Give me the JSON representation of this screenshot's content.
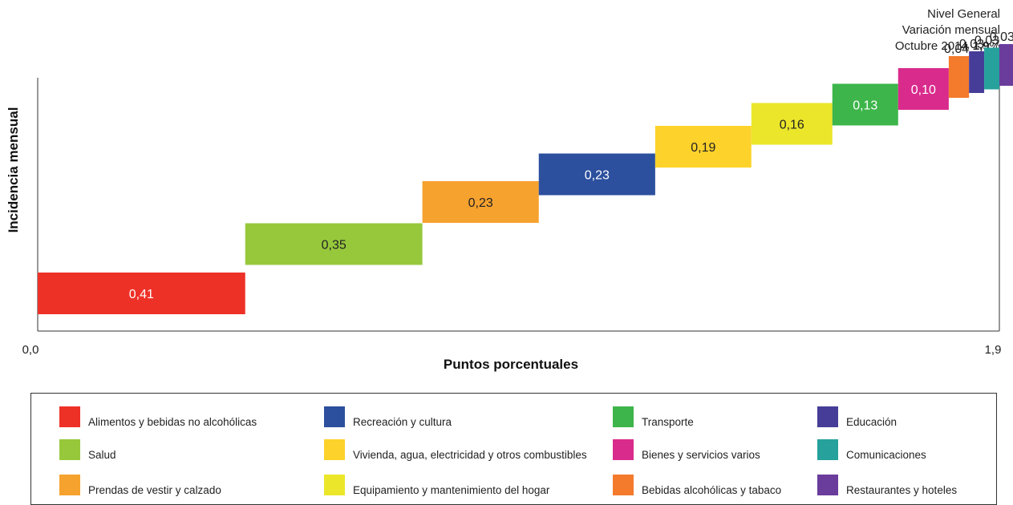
{
  "corner": {
    "line1": "Nivel General",
    "line2": "Variación mensual",
    "line3": "Octubre 2014",
    "value": "1,9",
    "unit": "%"
  },
  "chart_data": {
    "type": "bar",
    "subtype": "waterfall",
    "title": "",
    "xlabel": "Puntos porcentuales",
    "ylabel": "Incidencia mensual",
    "xlim": [
      0,
      1.9
    ],
    "x_tick_labels": [
      "0,0",
      "1,9"
    ],
    "total": 1.9,
    "total_label": "1,9%",
    "categories": [
      "Alimentos y bebidas no alcohólicas",
      "Salud",
      "Prendas de vestir y calzado",
      "Recreación y cultura",
      "Vivienda, agua, electricidad y otros combustibles",
      "Equipamiento y mantenimiento del hogar",
      "Transporte",
      "Bienes y servicios varios",
      "Bebidas alcohólicas y tabaco",
      "Educación",
      "Comunicaciones",
      "Restaurantes y hoteles"
    ],
    "values": [
      0.41,
      0.35,
      0.23,
      0.23,
      0.19,
      0.16,
      0.13,
      0.1,
      0.04,
      0.03,
      0.03,
      0.03
    ],
    "value_labels": [
      "0,41",
      "0,35",
      "0,23",
      "0,23",
      "0,19",
      "0,16",
      "0,13",
      "0,10",
      "0,04",
      "0,03",
      "0,03",
      "0,03"
    ],
    "colors": [
      "#ee3127",
      "#97c83c",
      "#f6a22f",
      "#2c4f9e",
      "#fdd22b",
      "#ebe62a",
      "#3db54a",
      "#d92b8c",
      "#f47a2c",
      "#463d98",
      "#26a19c",
      "#6a3c9c"
    ],
    "legend_placement": "bottom",
    "grid": false
  },
  "legend": {
    "items": [
      {
        "label": "Alimentos y bebidas no alcohólicas",
        "color": "#ee3127"
      },
      {
        "label": "Recreación y cultura",
        "color": "#2c4f9e"
      },
      {
        "label": "Transporte",
        "color": "#3db54a"
      },
      {
        "label": "Educación",
        "color": "#463d98"
      },
      {
        "label": "Salud",
        "color": "#97c83c"
      },
      {
        "label": "Vivienda, agua, electricidad y otros combustibles",
        "color": "#fdd22b"
      },
      {
        "label": "Bienes y servicios varios",
        "color": "#d92b8c"
      },
      {
        "label": "Comunicaciones",
        "color": "#26a19c"
      },
      {
        "label": "Prendas de vestir y calzado",
        "color": "#f6a22f"
      },
      {
        "label": "Equipamiento y mantenimiento del hogar",
        "color": "#ebe62a"
      },
      {
        "label": "Bebidas alcohólicas y tabaco",
        "color": "#f47a2c"
      },
      {
        "label": "Restaurantes y hoteles",
        "color": "#6a3c9c"
      }
    ]
  }
}
